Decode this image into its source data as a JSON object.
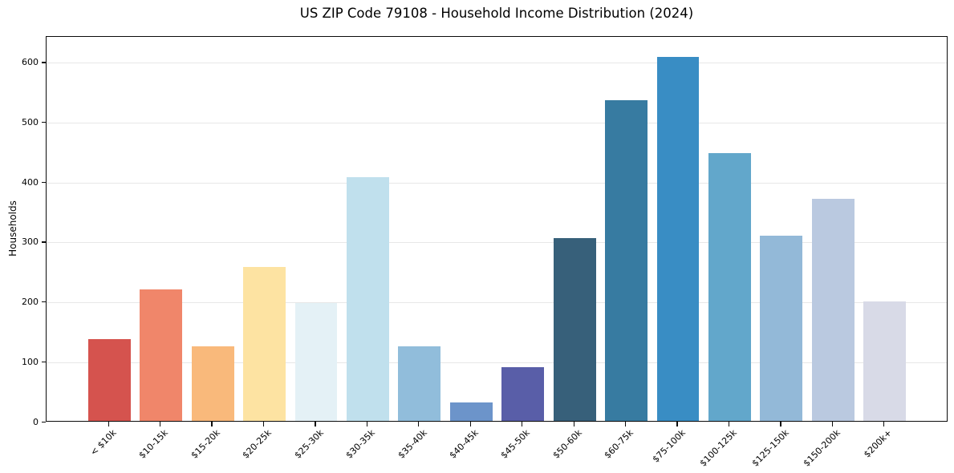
{
  "figure": {
    "title": "US ZIP Code 79108 - Household Income Distribution (2024)"
  },
  "chart_data": {
    "type": "bar",
    "title": "US ZIP Code 79108 - Household Income Distribution (2024)",
    "xlabel": "",
    "ylabel": "Households",
    "categories": [
      "< $10k",
      "$10-15k",
      "$15-20k",
      "$20-25k",
      "$25-30k",
      "$30-35k",
      "$35-40k",
      "$40-45k",
      "$45-50k",
      "$50-60k",
      "$60-75k",
      "$75-100k",
      "$100-125k",
      "$125-150k",
      "$150-200k",
      "$200k+"
    ],
    "values": [
      137,
      220,
      125,
      258,
      197,
      409,
      125,
      31,
      90,
      306,
      538,
      611,
      449,
      310,
      372,
      200
    ],
    "bar_colors": [
      "#d5534e",
      "#f0866a",
      "#f9b97b",
      "#fde3a2",
      "#e4f1f6",
      "#c0e0ed",
      "#91bddb",
      "#6c94ca",
      "#595ea8",
      "#37607a",
      "#377ba1",
      "#398dc4",
      "#62a7cb",
      "#93b9d8",
      "#bac9e0",
      "#d8dae7"
    ],
    "yticks": [
      0,
      100,
      200,
      300,
      400,
      500,
      600
    ],
    "ylim": [
      0,
      644
    ],
    "grid": "horizontal-y",
    "gridline_color": "#e7e7e7",
    "x_tick_rotation": 45,
    "legend_position": "none",
    "axis_color": "#0b0b0b",
    "background_color": "#ffffff"
  }
}
